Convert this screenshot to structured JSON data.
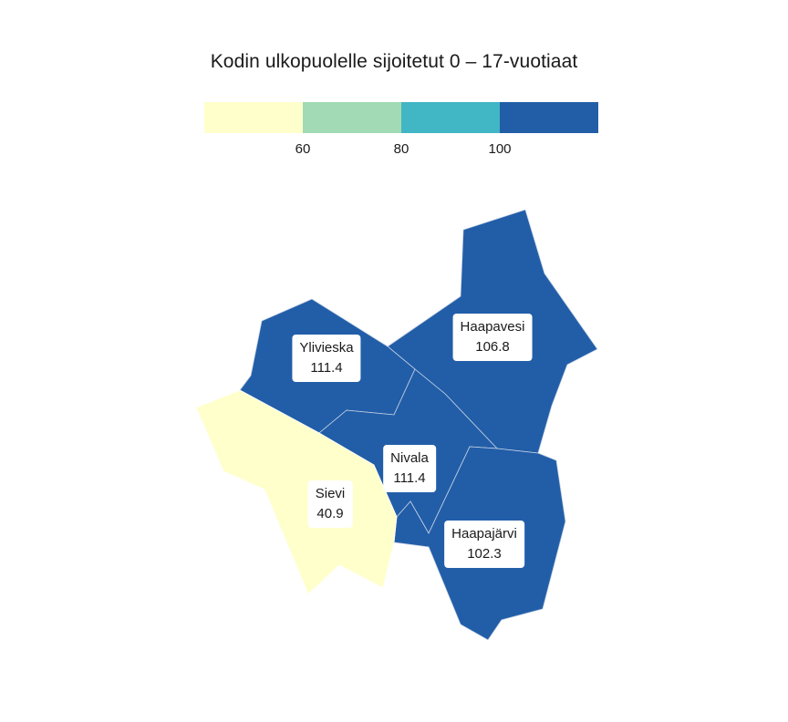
{
  "title": "Kodin ulkopuolelle sijoitetut 0 – 17-vuotiaat",
  "legend": {
    "colors": [
      "#ffffcc",
      "#a1dab4",
      "#41b6c4",
      "#225ea8"
    ],
    "ticks": [
      "60",
      "80",
      "100"
    ]
  },
  "regions": [
    {
      "name": "Haapavesi",
      "value": "106.8",
      "color": "#225ea8"
    },
    {
      "name": "Ylivieska",
      "value": "111.4",
      "color": "#225ea8"
    },
    {
      "name": "Nivala",
      "value": "111.4",
      "color": "#225ea8"
    },
    {
      "name": "Sievi",
      "value": "40.9",
      "color": "#ffffcc"
    },
    {
      "name": "Haapajärvi",
      "value": "102.3",
      "color": "#225ea8"
    }
  ]
}
